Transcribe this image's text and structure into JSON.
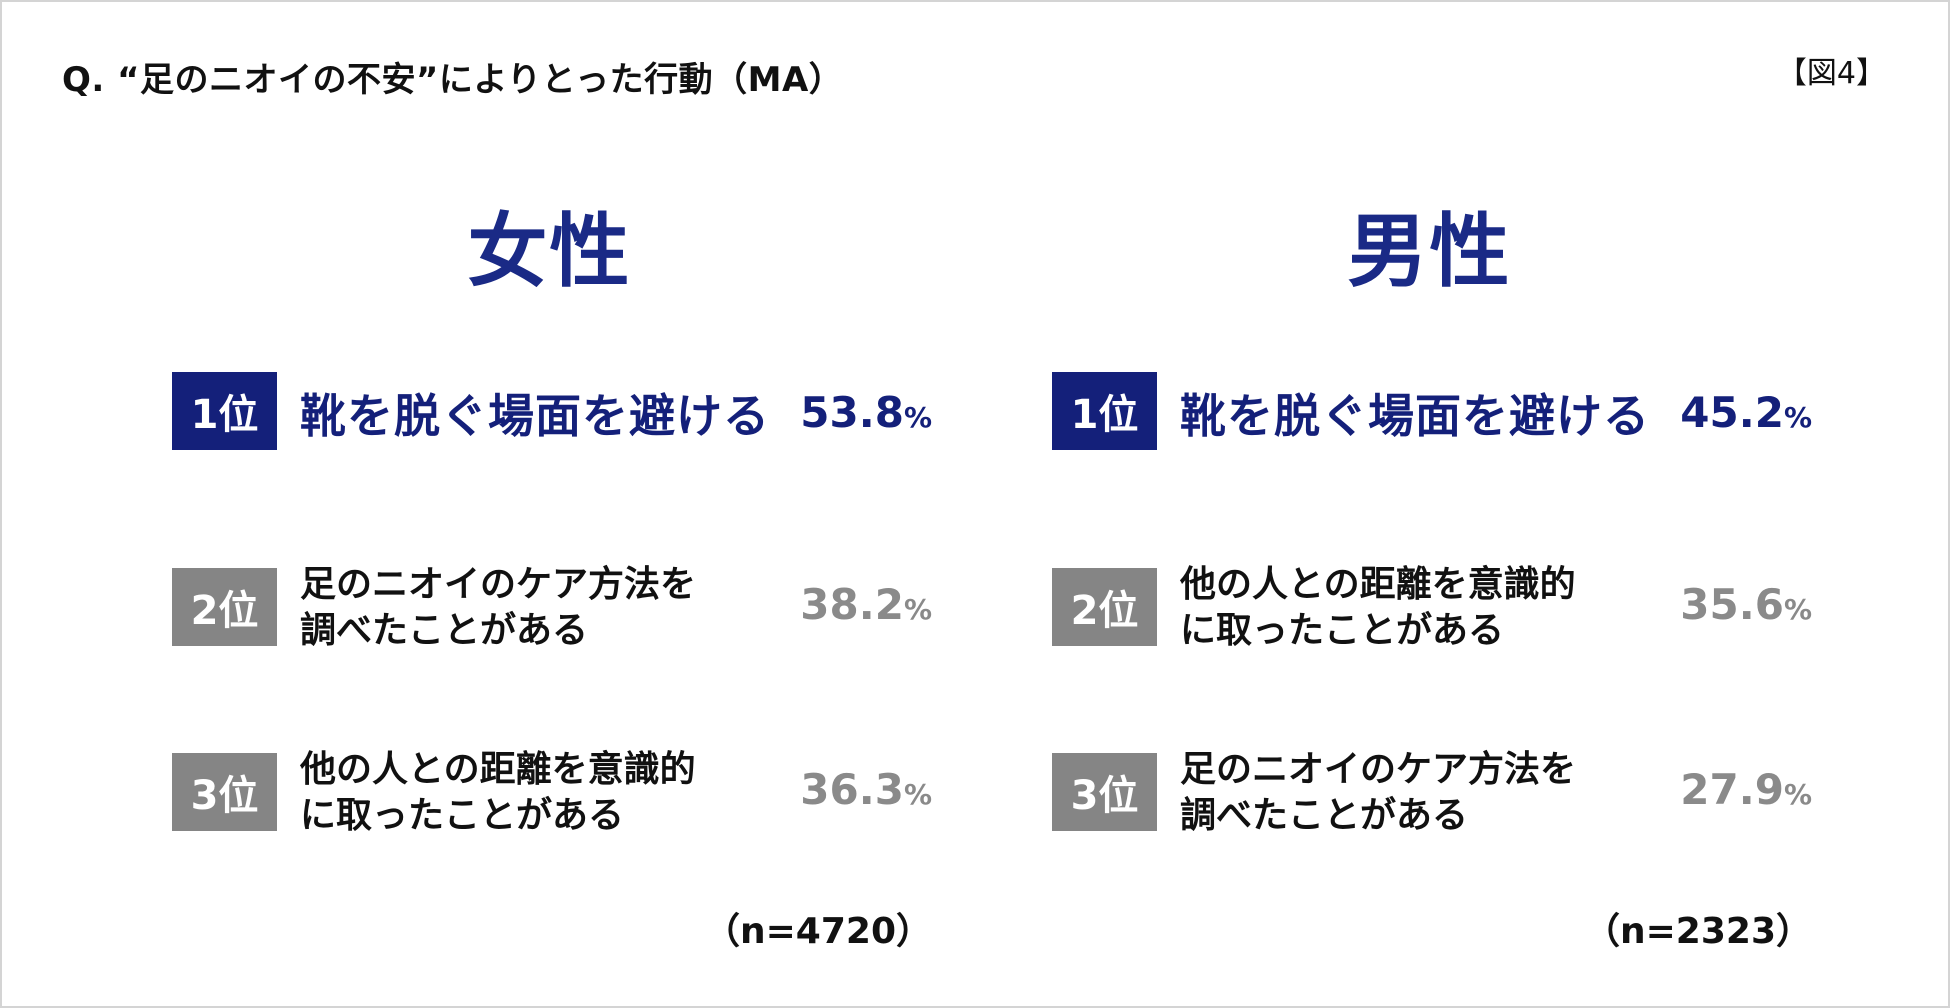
{
  "header": {
    "question": "Q. “足のニオイの不安”によりとった行動（MA）",
    "figure_label": "【図4】"
  },
  "colors": {
    "primary_navy": "#14207a",
    "title_navy": "#1a2a86",
    "rank_gray": "#858585",
    "percent_gray": "#8a8a8a"
  },
  "female": {
    "title": "女性",
    "sample": "（n=4720）",
    "items": [
      {
        "rank": "1位",
        "line1": "靴を脱ぐ場面を避ける",
        "line2": "",
        "value": "53.8",
        "unit": "%"
      },
      {
        "rank": "2位",
        "line1": "足のニオイのケア方法を",
        "line2": "調べたことがある",
        "value": "38.2",
        "unit": "%"
      },
      {
        "rank": "3位",
        "line1": "他の人との距離を意識的",
        "line2": "に取ったことがある",
        "value": "36.3",
        "unit": "%"
      }
    ]
  },
  "male": {
    "title": "男性",
    "sample": "（n=2323）",
    "items": [
      {
        "rank": "1位",
        "line1": "靴を脱ぐ場面を避ける",
        "line2": "",
        "value": "45.2",
        "unit": "%"
      },
      {
        "rank": "2位",
        "line1": "他の人との距離を意識的",
        "line2": "に取ったことがある",
        "value": "35.6",
        "unit": "%"
      },
      {
        "rank": "3位",
        "line1": "足のニオイのケア方法を",
        "line2": "調べたことがある",
        "value": "27.9",
        "unit": "%"
      }
    ]
  }
}
